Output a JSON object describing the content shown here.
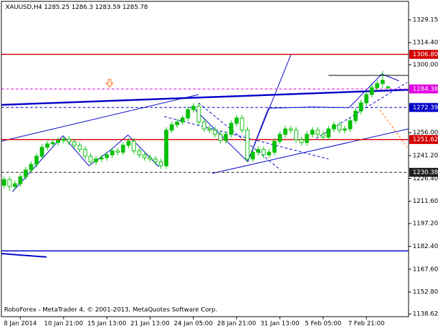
{
  "chart_data": {
    "type": "candlestick",
    "symbol": "XAUUSD,H4",
    "footer": "RoboForex - MetaTrader 4, © 2001-2013, MetaQuotes Software Corp.",
    "color": "#00c000",
    "xlim": [
      -0.5,
      74.8
    ],
    "ylim": [
      1136.86,
      1341.14
    ],
    "xticks": [
      {
        "value": 3,
        "label": "8 Jan 2014"
      },
      {
        "value": 11,
        "label": "10 Jan 21:00"
      },
      {
        "value": 19,
        "label": "15 Jan 13:00"
      },
      {
        "value": 27,
        "label": "21 Jan 13:00"
      },
      {
        "value": 35,
        "label": "24 Jan 05:00"
      },
      {
        "value": 43,
        "label": "28 Jan 21:00"
      },
      {
        "value": 51,
        "label": "31 Jan 13:00"
      },
      {
        "value": 59,
        "label": "5 Feb 05:00"
      },
      {
        "value": 67,
        "label": "7 Feb 21:00"
      }
    ],
    "yticks": [
      {
        "value": 1329.15,
        "label": "1329.15"
      },
      {
        "value": 1314.4,
        "label": "1314.40"
      },
      {
        "value": 1300,
        "label": "1300.00"
      },
      {
        "value": 1256,
        "label": "1256.00"
      },
      {
        "value": 1241.2,
        "label": "1241.20"
      },
      {
        "value": 1226.4,
        "label": "1226.40"
      },
      {
        "value": 1211.6,
        "label": "1211.60"
      },
      {
        "value": 1197.2,
        "label": "1197.20"
      },
      {
        "value": 1182.4,
        "label": "1182.40"
      },
      {
        "value": 1167.6,
        "label": "1167.60"
      },
      {
        "value": 1152.8,
        "label": "1152.80"
      },
      {
        "value": 1138.62,
        "label": "1138.62"
      }
    ],
    "levels": [
      {
        "value": 1306.8,
        "label": "1306.80",
        "color": "#d40000",
        "dash": false
      },
      {
        "value": 1284.38,
        "label": "1284.38",
        "color": "#e000e0",
        "dash": true
      },
      {
        "value": 1272.39,
        "label": "1272.39",
        "color": "#0000c8",
        "dash": true
      },
      {
        "value": 1251.62,
        "label": "1251.62",
        "color": "#d40000",
        "dash": false
      },
      {
        "value": 1230.38,
        "label": "1230.38",
        "color": "#202020",
        "dash": true
      },
      {
        "value": 1179.5,
        "color": "#0000c8",
        "dash": false
      }
    ],
    "open": [
      1222.0,
      1225.7,
      1221.2,
      1223.0,
      1227.5,
      1231.9,
      1235.5,
      1240.8,
      1246.6,
      1248.8,
      1249.7,
      1251.0,
      1251.9,
      1250.1,
      1247.9,
      1245.2,
      1240.8,
      1237.2,
      1239.0,
      1239.9,
      1241.7,
      1244.3,
      1243.4,
      1247.9,
      1250.5,
      1244.3,
      1241.7,
      1239.9,
      1239.0,
      1237.2,
      1234.6,
      1257.7,
      1261.2,
      1263.0,
      1265.6,
      1271.0,
      1273.2,
      1263.0,
      1258.5,
      1257.7,
      1255.0,
      1251.0,
      1255.0,
      1262.1,
      1265.6,
      1257.7,
      1239.0,
      1243.4,
      1245.2,
      1241.7,
      1243.4,
      1250.5,
      1255.0,
      1258.5,
      1257.7,
      1251.5,
      1249.7,
      1255.0,
      1257.7,
      1255.0,
      1253.2,
      1258.5,
      1261.2,
      1257.7,
      1258.5,
      1263.9,
      1270.1,
      1275.4,
      1280.8,
      1285.2,
      1287.9,
      1285.25
    ],
    "high": [
      1227.7,
      1227.7,
      1225.0,
      1229.5,
      1233.9,
      1237.5,
      1242.8,
      1248.6,
      1250.8,
      1251.7,
      1253.0,
      1253.9,
      1253.9,
      1252.1,
      1249.9,
      1247.2,
      1242.8,
      1241.0,
      1241.9,
      1243.7,
      1246.3,
      1246.3,
      1249.9,
      1252.5,
      1252.5,
      1246.3,
      1243.7,
      1241.9,
      1241.0,
      1239.2,
      1259.7,
      1263.2,
      1265.0,
      1267.6,
      1273.0,
      1275.2,
      1275.2,
      1265.0,
      1260.5,
      1259.7,
      1257.0,
      1257.0,
      1264.1,
      1267.6,
      1267.6,
      1259.7,
      1245.4,
      1247.2,
      1247.2,
      1245.4,
      1252.5,
      1257.0,
      1260.5,
      1260.5,
      1259.7,
      1253.5,
      1257.0,
      1259.7,
      1259.7,
      1257.0,
      1260.5,
      1263.2,
      1263.2,
      1260.5,
      1265.9,
      1272.1,
      1277.4,
      1282.8,
      1287.2,
      1289.9,
      1296.1,
      1286.3
    ],
    "low": [
      1220.0,
      1218.5,
      1219.2,
      1221.0,
      1225.5,
      1229.9,
      1233.5,
      1238.8,
      1244.6,
      1246.8,
      1247.7,
      1249.0,
      1248.1,
      1245.9,
      1243.2,
      1238.8,
      1235.2,
      1235.2,
      1237.0,
      1237.9,
      1239.7,
      1241.4,
      1241.4,
      1245.9,
      1242.3,
      1239.7,
      1237.9,
      1237.0,
      1235.2,
      1232.6,
      1232.6,
      1255.7,
      1259.2,
      1261.0,
      1263.6,
      1269.0,
      1261.0,
      1256.5,
      1255.7,
      1253.0,
      1249.0,
      1249.0,
      1253.0,
      1260.1,
      1255.7,
      1237.0,
      1237.0,
      1241.4,
      1239.7,
      1239.7,
      1241.4,
      1248.5,
      1253.0,
      1255.7,
      1249.5,
      1247.7,
      1247.7,
      1253.0,
      1253.0,
      1251.2,
      1251.2,
      1256.5,
      1255.7,
      1255.7,
      1256.5,
      1261.9,
      1268.1,
      1273.4,
      1278.8,
      1283.2,
      1284.9,
      1283.59
    ],
    "close": [
      1225.7,
      1221.2,
      1223.0,
      1227.5,
      1231.9,
      1235.5,
      1240.8,
      1246.6,
      1248.8,
      1249.7,
      1251.0,
      1251.9,
      1250.1,
      1247.9,
      1245.2,
      1240.8,
      1237.2,
      1239.0,
      1239.9,
      1241.7,
      1244.3,
      1243.4,
      1247.9,
      1250.5,
      1244.3,
      1241.7,
      1239.9,
      1239.0,
      1237.2,
      1234.6,
      1257.7,
      1261.2,
      1263.0,
      1265.6,
      1271.0,
      1273.2,
      1263.0,
      1258.5,
      1257.7,
      1255.0,
      1251.0,
      1255.0,
      1262.1,
      1265.6,
      1257.7,
      1239.0,
      1243.4,
      1245.2,
      1241.7,
      1243.4,
      1250.5,
      1255.0,
      1258.5,
      1257.7,
      1251.5,
      1249.7,
      1255.0,
      1257.7,
      1255.0,
      1253.2,
      1258.5,
      1261.2,
      1257.7,
      1258.5,
      1263.9,
      1270.1,
      1275.4,
      1280.8,
      1285.2,
      1287.9,
      1290.0,
      1285.78
    ]
  }
}
